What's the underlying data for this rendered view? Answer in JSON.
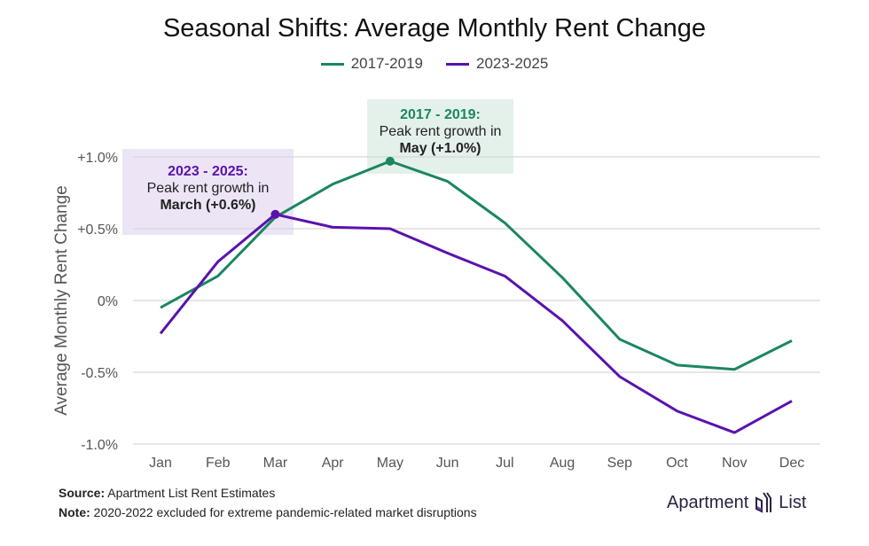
{
  "chart_data": {
    "type": "line",
    "title": "Seasonal Shifts: Average Monthly Rent Change",
    "ylabel": "Average Monthly Rent Change",
    "xlabel": "",
    "categories": [
      "Jan",
      "Feb",
      "Mar",
      "Apr",
      "May",
      "Jun",
      "Jul",
      "Aug",
      "Sep",
      "Oct",
      "Nov",
      "Dec"
    ],
    "ylim": [
      -1.0,
      1.0
    ],
    "yticks": [
      1.0,
      0.5,
      0,
      -0.5,
      -1.0
    ],
    "ytick_labels": [
      "+1.0%",
      "+0.5%",
      "0%",
      "-0.5%",
      "-1.0%"
    ],
    "grid": true,
    "legend_position": "top",
    "series": [
      {
        "name": "2017-2019",
        "color": "#1b8661",
        "values": [
          -0.05,
          0.17,
          0.58,
          0.81,
          0.97,
          0.83,
          0.54,
          0.16,
          -0.27,
          -0.45,
          -0.48,
          -0.28
        ]
      },
      {
        "name": "2023-2025",
        "color": "#5a12ad",
        "values": [
          -0.23,
          0.27,
          0.6,
          0.51,
          0.5,
          0.33,
          0.17,
          -0.14,
          -0.53,
          -0.77,
          -0.92,
          -0.7
        ]
      }
    ],
    "annotations": [
      {
        "series": 0,
        "month": "May",
        "heading": "2017 - 2019:",
        "line1": "Peak rent growth in",
        "line2": "May (+1.0%)",
        "bg": "#e4f1eb"
      },
      {
        "series": 1,
        "month": "Mar",
        "heading": "2023 - 2025:",
        "line1": "Peak rent growth in",
        "line2": "March (+0.6%)",
        "bg": "#ede5f6"
      }
    ]
  },
  "footer": {
    "source_label": "Source:",
    "source_text": " Apartment List Rent Estimates",
    "note_label": "Note:",
    "note_text": " 2020-2022 excluded for extreme pandemic-related market disruptions"
  },
  "logo": {
    "text_left": "Apartment",
    "text_right": "List"
  }
}
